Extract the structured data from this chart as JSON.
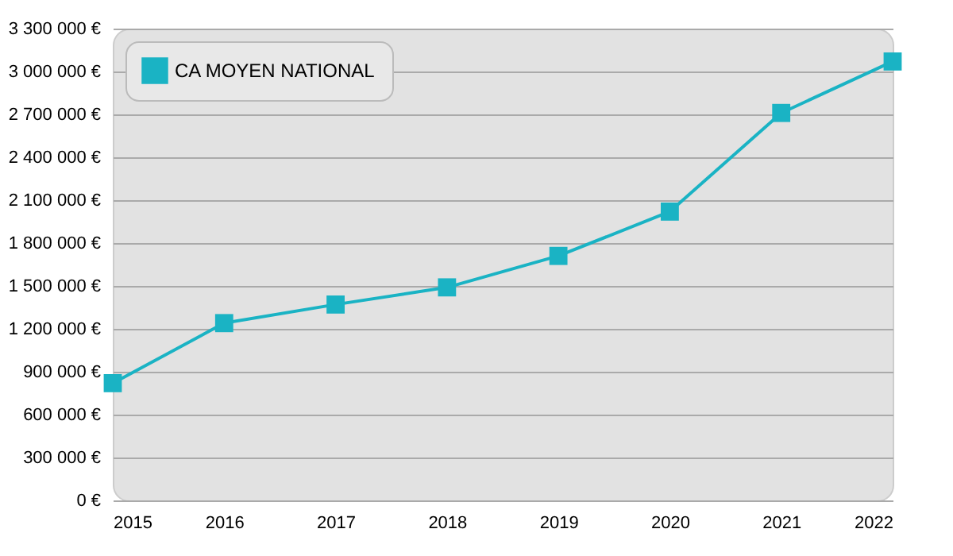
{
  "chart_data": {
    "type": "line",
    "x": [
      2015,
      2016,
      2017,
      2018,
      2019,
      2020,
      2021,
      2022
    ],
    "series": [
      {
        "name": "CA MOYEN NATIONAL",
        "color": "#1ab3c4",
        "values": [
          820000,
          1240000,
          1370000,
          1490000,
          1710000,
          2020000,
          2710000,
          3070000
        ]
      }
    ],
    "xlim": [
      2015,
      2022
    ],
    "xticks": [
      2015,
      2016,
      2017,
      2018,
      2019,
      2020,
      2021,
      2022
    ],
    "ylim": [
      0,
      3300000
    ],
    "yticks": [
      {
        "value": 0,
        "label": "0 €"
      },
      {
        "value": 300000,
        "label": "300 000 €"
      },
      {
        "value": 600000,
        "label": "600 000 €"
      },
      {
        "value": 900000,
        "label": "900 000 €"
      },
      {
        "value": 1200000,
        "label": "1 200 000 €"
      },
      {
        "value": 1500000,
        "label": "1 500 000 €"
      },
      {
        "value": 1800000,
        "label": "1 800 000 €"
      },
      {
        "value": 2100000,
        "label": "2 100 000 €"
      },
      {
        "value": 2400000,
        "label": "2 400 000 €"
      },
      {
        "value": 2700000,
        "label": "2 700 000 €"
      },
      {
        "value": 3000000,
        "label": "3 000 000 €"
      },
      {
        "value": 3300000,
        "label": "3 300 000 €"
      }
    ],
    "grid": "y",
    "legend": "top left",
    "marker": "square",
    "line_style": "solid"
  }
}
